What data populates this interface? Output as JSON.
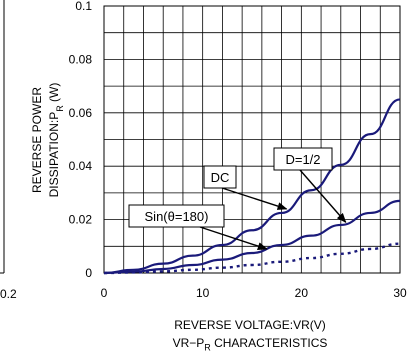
{
  "chart_data": {
    "type": "line",
    "xlabel": "REVERSE VOLTAGE:VR(V)",
    "ylabel_prefix": "REVERSE POWER",
    "ylabel_main": "DISSIPATION:P",
    "ylabel_sub": "R",
    "ylabel_unit": " (W)",
    "caption_prefix": "VR−P",
    "caption_sub": "R",
    "caption_suffix": " CHARACTERISTICS",
    "xlim": [
      0,
      30
    ],
    "ylim": [
      0,
      0.1
    ],
    "x_ticks": [
      "0",
      "10",
      "20",
      "30"
    ],
    "y_ticks": [
      "0",
      "0.02",
      "0.04",
      "0.06",
      "0.08",
      "0.1"
    ],
    "grid": true,
    "left_partial_tick": "0.2",
    "series": [
      {
        "name": "DC",
        "style": "solid",
        "x": [
          0,
          3,
          6,
          9,
          12,
          15,
          18,
          21,
          24,
          27,
          30
        ],
        "y": [
          0,
          0.0012,
          0.0035,
          0.0065,
          0.0105,
          0.016,
          0.0225,
          0.031,
          0.0405,
          0.052,
          0.065
        ]
      },
      {
        "name": "D=1/2",
        "style": "solid",
        "x": [
          0,
          3,
          6,
          9,
          12,
          15,
          18,
          21,
          24,
          27,
          30
        ],
        "y": [
          0,
          0.0005,
          0.0015,
          0.003,
          0.005,
          0.0075,
          0.0105,
          0.014,
          0.018,
          0.0225,
          0.027
        ]
      },
      {
        "name": "Sin(θ=180)",
        "style": "dotted",
        "x": [
          0,
          3,
          6,
          9,
          12,
          15,
          18,
          21,
          24,
          27,
          30
        ],
        "y": [
          0,
          0.0002,
          0.0006,
          0.0012,
          0.002,
          0.003,
          0.0042,
          0.0056,
          0.0072,
          0.009,
          0.011
        ]
      }
    ],
    "annotations": [
      {
        "id": "dc",
        "text": "DC",
        "points_to": [
          18.5,
          0.024
        ]
      },
      {
        "id": "d12",
        "text": "D=1/2",
        "points_to": [
          24.5,
          0.019
        ]
      },
      {
        "id": "sin",
        "text": "Sin(θ=180)",
        "points_to": [
          16.5,
          0.009
        ]
      }
    ],
    "colors": {
      "curve": "#1a1a7a",
      "grid": "#000000"
    }
  }
}
